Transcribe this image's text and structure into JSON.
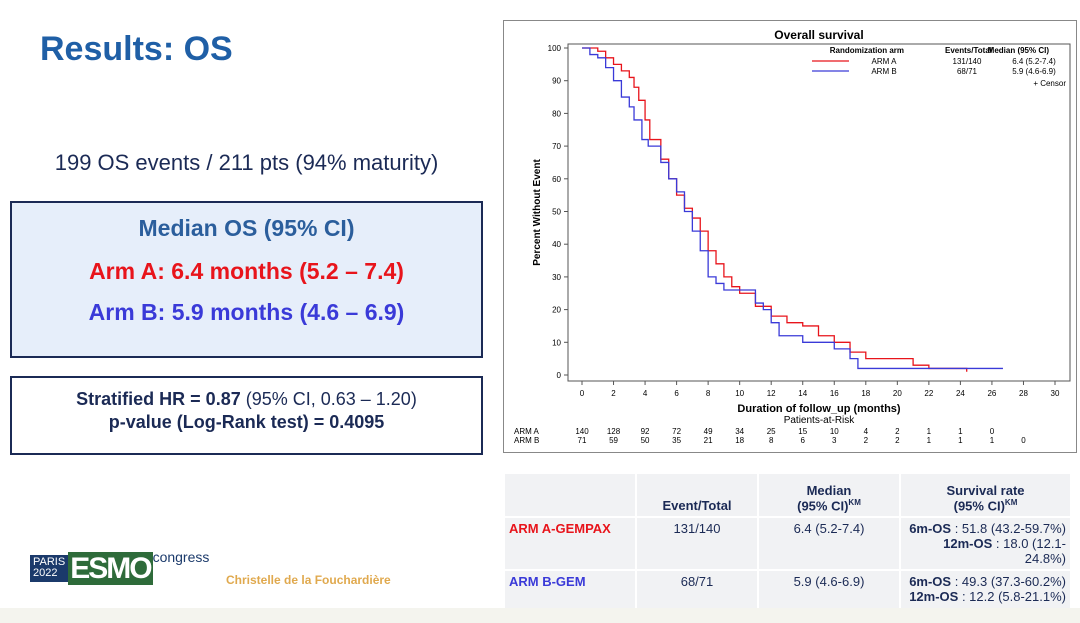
{
  "slide": {
    "title": "Results: OS",
    "events_line": "199 OS events / 211 pts (94% maturity)",
    "median_box": {
      "heading": "Median OS (95% CI)",
      "arm_a": "Arm A: 6.4 months (5.2 – 7.4)",
      "arm_b": "Arm B: 5.9 months (4.6 – 6.9)"
    },
    "hr_box": {
      "hr_label": "Stratified HR = 0.87",
      "hr_ci": " (95% CI, 0.63 – 1.20)",
      "pvalue": "p-value (Log-Rank test) = 0.4095"
    },
    "logo": {
      "city": "PARIS",
      "year": "2022",
      "brand": "ESMO",
      "suffix": "congress"
    },
    "author": "Christelle de la Fouchardière"
  },
  "table": {
    "headers": [
      "",
      "Event/Total",
      "Median",
      "Survival rate"
    ],
    "header_sub": [
      "",
      "",
      "(95% CI)",
      "(95% CI)"
    ],
    "sup": "KM",
    "rows": [
      {
        "arm": "ARM A-GEMPAX",
        "events": "131/140",
        "median": "6.4 (5.2-7.4)",
        "os6_label": "6m-OS",
        "os6": " : 51.8 (43.2-59.7%)",
        "os12_label": "12m-OS",
        "os12": " : 18.0 (12.1-24.8%)"
      },
      {
        "arm": "ARM B-GEM",
        "events": "68/71",
        "median": "5.9 (4.6-6.9)",
        "os6_label": "6m-OS",
        "os6": " : 49.3 (37.3-60.2%)",
        "os12_label": "12m-OS",
        "os12": " : 12.2 (5.8-21.1%)"
      }
    ]
  },
  "colors": {
    "arm_a": "#e8141b",
    "arm_b": "#3a3ad8",
    "title": "#1f5fa6",
    "navy": "#1b2a55"
  },
  "chart_data": {
    "type": "line",
    "title": "Overall survival",
    "xlabel": "Duration of follow_up (months)",
    "ylabel": "Percent Without Event",
    "xlim": [
      0,
      30
    ],
    "ylim": [
      0,
      100
    ],
    "xticks": [
      0,
      2,
      4,
      6,
      8,
      10,
      12,
      14,
      16,
      18,
      20,
      22,
      24,
      26,
      28,
      30
    ],
    "yticks": [
      0,
      10,
      20,
      30,
      40,
      50,
      60,
      70,
      80,
      90,
      100
    ],
    "legend": {
      "headers": [
        "Randomization arm",
        "Events/Total",
        "Median (95% CI)"
      ],
      "rows": [
        [
          "ARM A",
          "131/140",
          "6.4 (5.2-7.4)"
        ],
        [
          "ARM B",
          "68/71",
          "5.9 (4.6-6.9)"
        ]
      ],
      "censor": "+ Censor",
      "placement": "top-right"
    },
    "series": [
      {
        "name": "ARM A",
        "color": "#e8141b",
        "x": [
          0,
          0.5,
          1,
          1.5,
          2,
          2.5,
          3,
          3.3,
          3.6,
          4,
          4.3,
          5,
          5.5,
          6,
          6.5,
          7,
          7.5,
          8,
          8.5,
          9,
          9.5,
          10,
          11,
          12,
          13,
          14,
          15,
          16,
          17,
          18,
          20,
          21,
          22,
          24,
          24.4
        ],
        "y": [
          100,
          100,
          99,
          97,
          95,
          93,
          91,
          88,
          84,
          78,
          72,
          66,
          60,
          55,
          51,
          48,
          44,
          38,
          34,
          30,
          27,
          25,
          21,
          18,
          16,
          15,
          12,
          10,
          7,
          5,
          5,
          3,
          2,
          2,
          1
        ]
      },
      {
        "name": "ARM B",
        "color": "#3a3ad8",
        "x": [
          0,
          0.5,
          1,
          1.5,
          2,
          2.5,
          3,
          3.3,
          3.8,
          4.2,
          5,
          5.5,
          6,
          6.5,
          7,
          7.5,
          8,
          8.5,
          9,
          10,
          11,
          11.5,
          12,
          12.5,
          14,
          16,
          17,
          17.5,
          26.7
        ],
        "y": [
          100,
          98,
          97,
          94,
          90,
          85,
          82,
          78,
          72,
          70,
          65,
          60,
          56,
          50,
          44,
          38,
          30,
          28,
          26,
          26,
          22,
          20,
          16,
          12,
          10,
          8,
          5,
          2,
          2
        ]
      }
    ],
    "risk_table": {
      "title": "Patients-at-Risk",
      "times": [
        0,
        2,
        4,
        6,
        8,
        10,
        12,
        14,
        16,
        18,
        20,
        22,
        24,
        26,
        28
      ],
      "rows": [
        {
          "label": "ARM A",
          "values": [
            140,
            128,
            92,
            72,
            49,
            34,
            25,
            15,
            10,
            4,
            2,
            1,
            1,
            0,
            null
          ]
        },
        {
          "label": "ARM B",
          "values": [
            71,
            59,
            50,
            35,
            21,
            18,
            8,
            6,
            3,
            2,
            2,
            1,
            1,
            1,
            0
          ]
        }
      ]
    }
  }
}
